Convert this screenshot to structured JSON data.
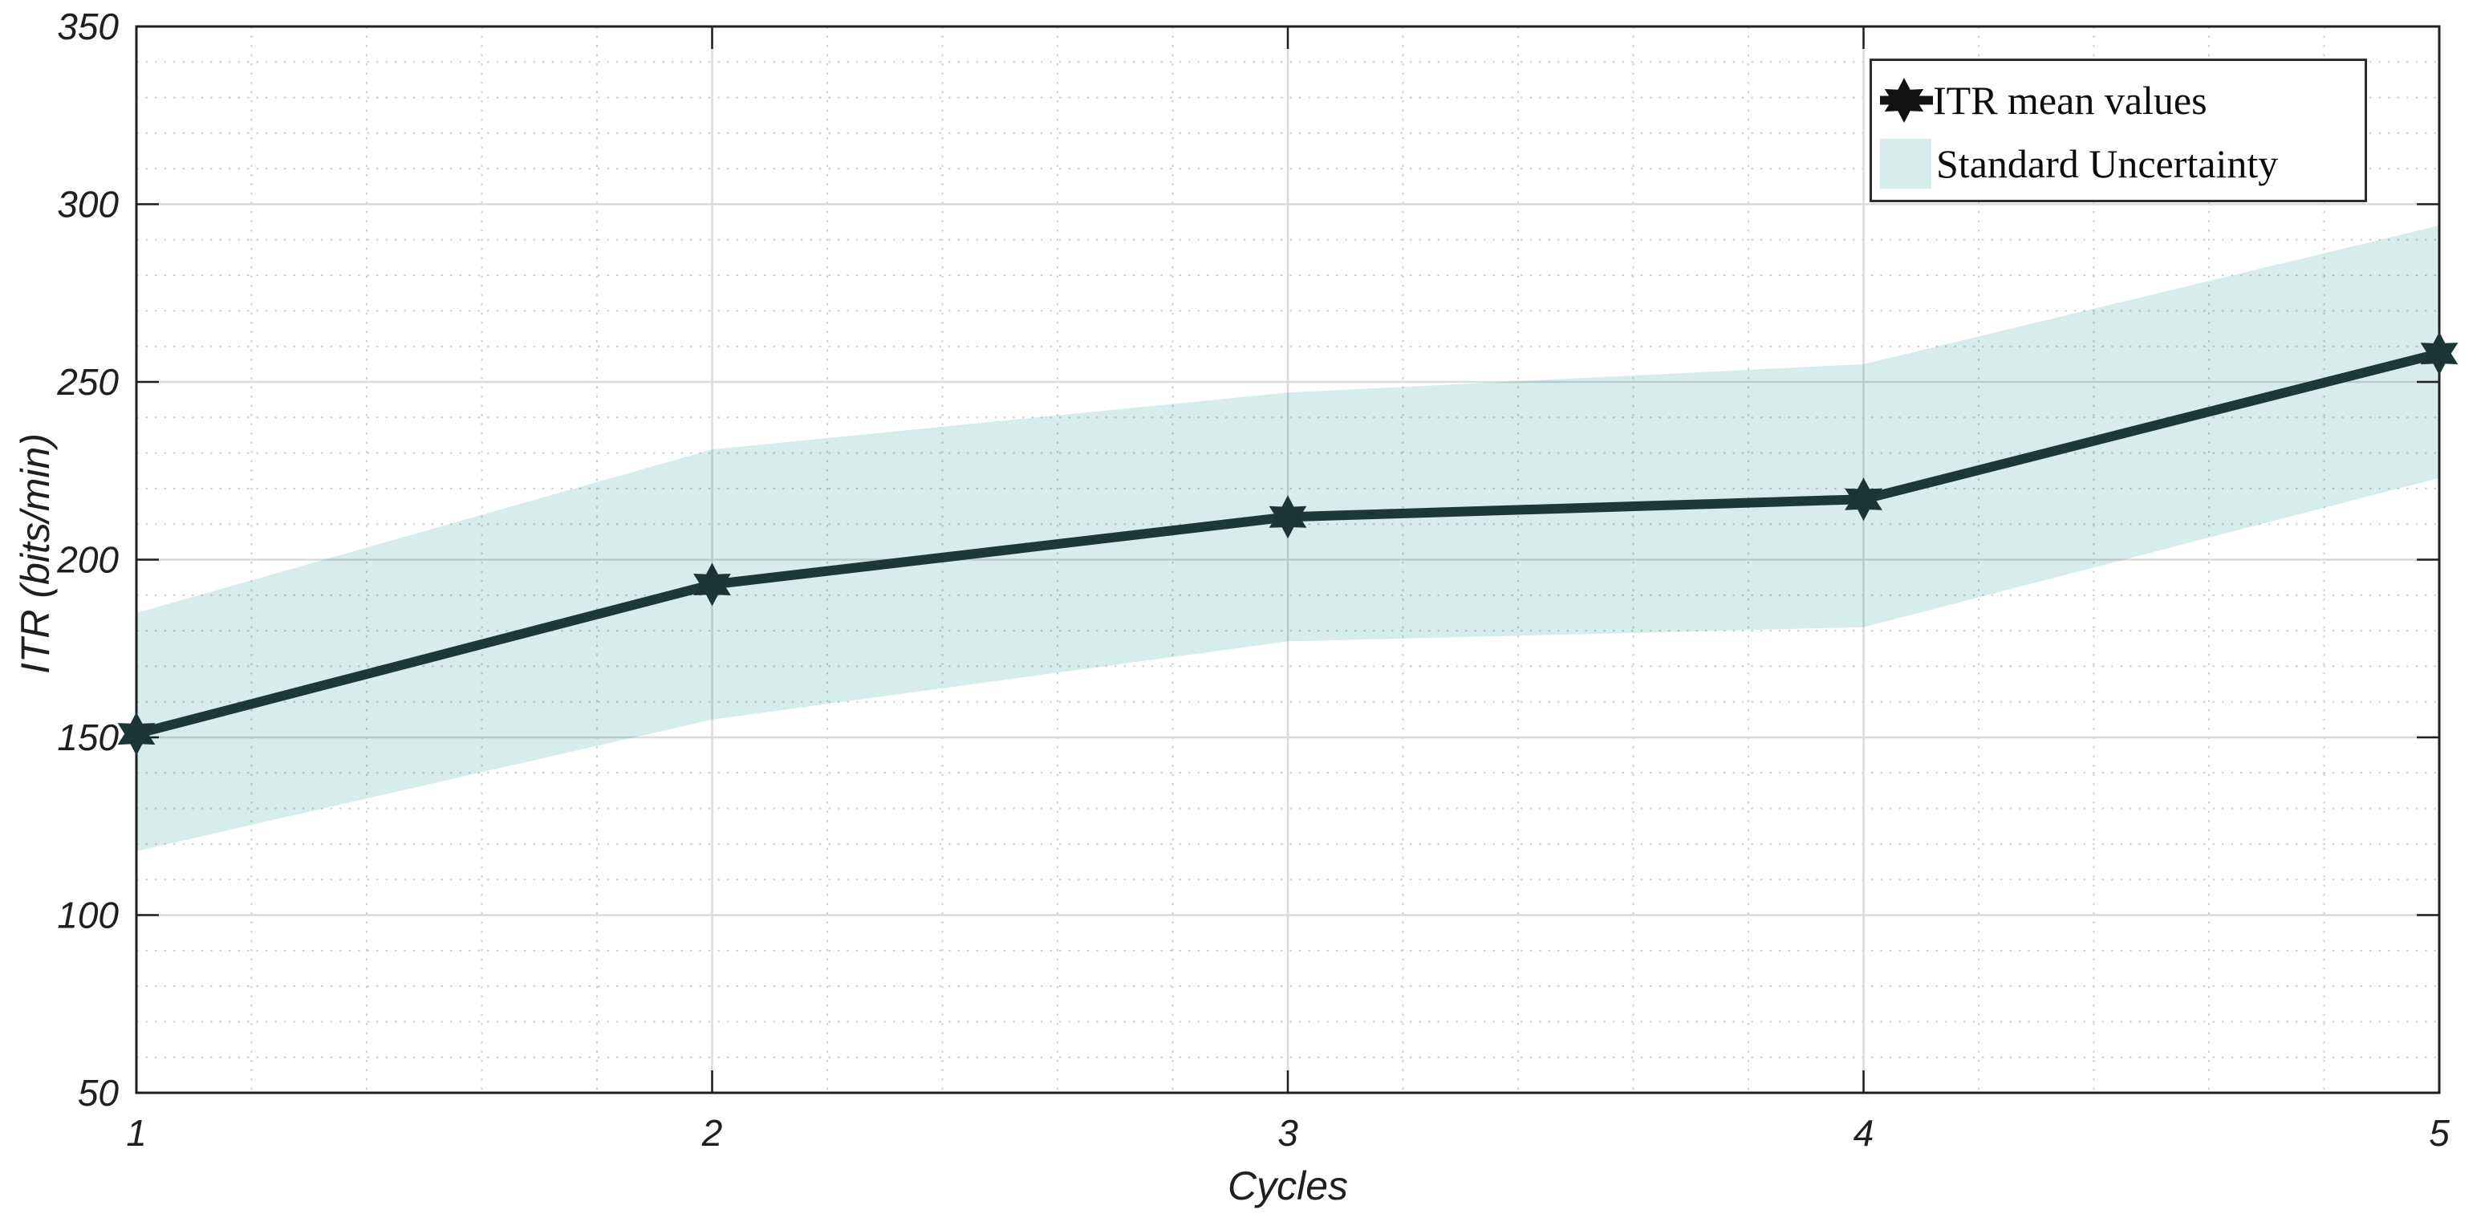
{
  "axes": {
    "xlabel": "Cycles",
    "ylabel": "ITR (bits/min)"
  },
  "legend": {
    "entries": [
      {
        "label": "ITR mean values",
        "marker": "hexagram-with-line"
      },
      {
        "label": "Standard Uncertainty",
        "marker": "filled-patch"
      }
    ]
  },
  "colors": {
    "series_line": "#1d3838",
    "marker_fill": "#1b3434",
    "band_fill": "#d6edeb",
    "legend_glyph": "#111111",
    "axis": "#1f1f1f",
    "grid_major": "#dbdbdb",
    "grid_minor": "#cfcfcf",
    "tick_label": "#1f1f1f",
    "background": "#ffffff"
  },
  "chart_data": {
    "type": "line",
    "title": "",
    "xlabel": "Cycles",
    "ylabel": "ITR (bits/min)",
    "x": [
      1,
      2,
      3,
      4,
      5
    ],
    "series": [
      {
        "name": "ITR mean values",
        "values": [
          151,
          193,
          212,
          217,
          258
        ],
        "marker": "hexagram"
      }
    ],
    "band": {
      "name": "Standard Uncertainty",
      "upper": [
        185,
        231,
        247,
        255,
        294
      ],
      "lower": [
        118,
        155,
        177,
        181,
        223
      ]
    },
    "xlim": [
      1,
      5
    ],
    "ylim": [
      50,
      350
    ],
    "xticks": [
      1,
      2,
      3,
      4,
      5
    ],
    "yticks": [
      50,
      100,
      150,
      200,
      250,
      300,
      350
    ],
    "minor_x_step": 0.2,
    "minor_y_step": 10,
    "grid": "major solid, minor dotted, box on, ticks inward mirrored",
    "legend_position": "top-right"
  }
}
